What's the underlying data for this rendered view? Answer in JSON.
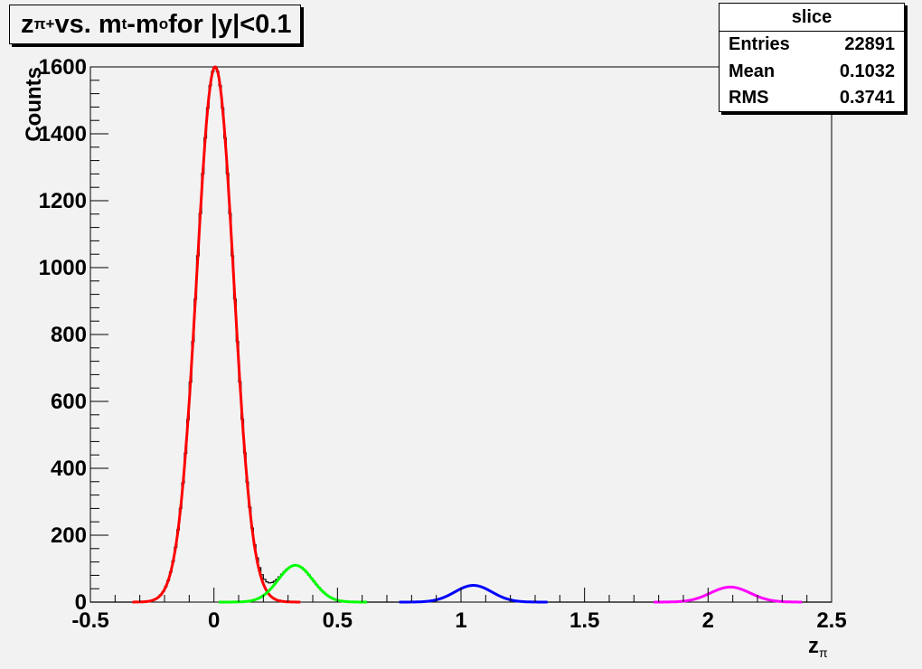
{
  "title": {
    "z": "z",
    "pi_sub": "π+",
    "mid": " vs. m",
    "t_sub": "t",
    "dash": "-m",
    "o_sub": "o",
    "rest": " for |y|<0.1"
  },
  "stats": {
    "name": "slice",
    "rows": [
      {
        "label": "Entries",
        "value": "22891"
      },
      {
        "label": "Mean",
        "value": "0.1032"
      },
      {
        "label": "RMS",
        "value": "0.3741"
      }
    ]
  },
  "chart_data": {
    "type": "line",
    "xlabel": "z",
    "xlabel_sub": "π",
    "ylabel": "Counts",
    "xlim": [
      -0.5,
      2.5
    ],
    "ylim": [
      0,
      1600
    ],
    "x_ticks": [
      "-0.5",
      "0",
      "0.5",
      "1",
      "1.5",
      "2",
      "2.5"
    ],
    "y_ticks": [
      "0",
      "200",
      "400",
      "600",
      "800",
      "1000",
      "1200",
      "1400",
      "1600"
    ],
    "histogram": {
      "name": "slice",
      "color": "#000000",
      "bin_width": 0.01,
      "components": [
        {
          "mean": 0.005,
          "sigma": 0.075,
          "amp": 1600
        },
        {
          "mean": 0.33,
          "sigma": 0.07,
          "amp": 110
        },
        {
          "mean": 1.05,
          "sigma": 0.075,
          "amp": 50
        },
        {
          "mean": 2.09,
          "sigma": 0.08,
          "amp": 45
        }
      ]
    },
    "series": [
      {
        "color": "#ff0000",
        "mean": 0.005,
        "sigma": 0.075,
        "amp": 1600,
        "range": [
          -0.33,
          0.35
        ]
      },
      {
        "color": "#00ff00",
        "mean": 0.33,
        "sigma": 0.07,
        "amp": 110,
        "range": [
          0.02,
          0.62
        ]
      },
      {
        "color": "#0000ff",
        "mean": 1.05,
        "sigma": 0.075,
        "amp": 50,
        "range": [
          0.75,
          1.35
        ]
      },
      {
        "color": "#ff00ff",
        "mean": 2.09,
        "sigma": 0.08,
        "amp": 45,
        "range": [
          1.78,
          2.38
        ]
      }
    ]
  }
}
